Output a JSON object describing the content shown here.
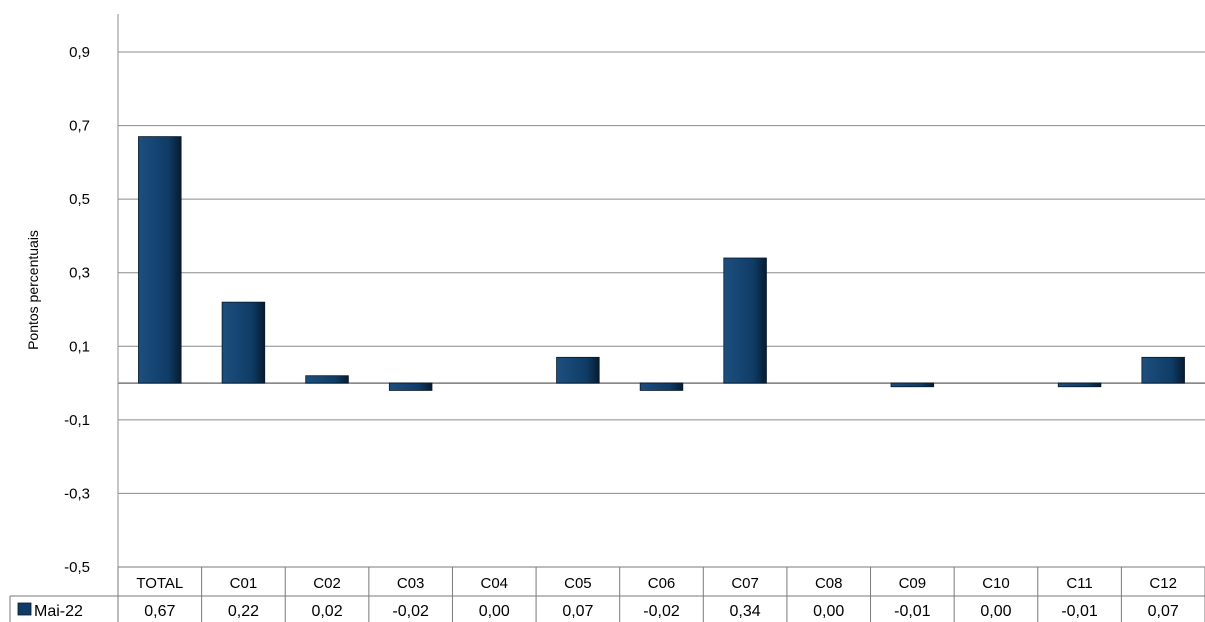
{
  "chart_data": {
    "type": "bar",
    "ylabel": "Pontos percentuais",
    "ylim": [
      -0.5,
      1.0
    ],
    "yticks": [
      "0,9",
      "0,7",
      "0,5",
      "0,3",
      "0,1",
      "-0,1",
      "-0,3",
      "-0,5"
    ],
    "ytick_values": [
      0.9,
      0.7,
      0.5,
      0.3,
      0.1,
      -0.1,
      -0.3,
      -0.5
    ],
    "grid": true,
    "legend_position": "data-table",
    "bar_color": "#0d3b66",
    "categories": [
      "TOTAL",
      "C01",
      "C02",
      "C03",
      "C04",
      "C05",
      "C06",
      "C07",
      "C08",
      "C09",
      "C10",
      "C11",
      "C12"
    ],
    "series": [
      {
        "name": "Mai-22",
        "values": [
          0.67,
          0.22,
          0.02,
          -0.02,
          0.0,
          0.07,
          -0.02,
          0.34,
          0.0,
          -0.01,
          0.0,
          -0.01,
          0.07
        ],
        "labels": [
          "0,67",
          "0,22",
          "0,02",
          "-0,02",
          "0,00",
          "0,07",
          "-0,02",
          "0,34",
          "0,00",
          "-0,01",
          "0,00",
          "-0,01",
          "0,07"
        ]
      }
    ]
  }
}
